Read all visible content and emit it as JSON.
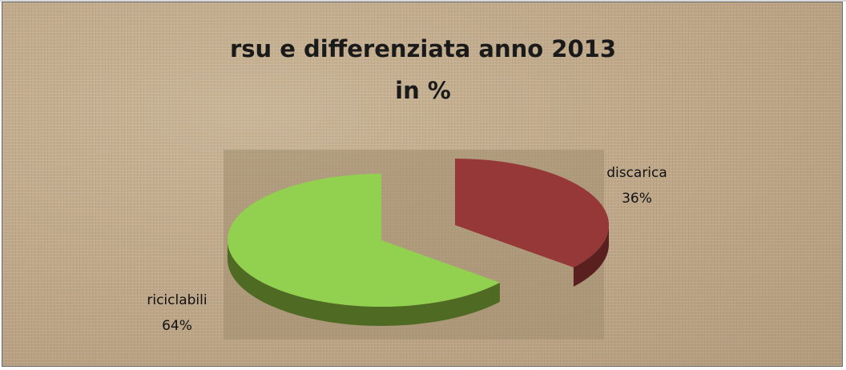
{
  "chart_data": {
    "type": "pie",
    "title": "rsu e differenziata anno 2013",
    "subtitle": "in %",
    "slices": [
      {
        "label": "discarica",
        "value": 36,
        "value_label": "36%",
        "color": "#963838",
        "side_color": "#5a1f1f"
      },
      {
        "label": "riciclabili",
        "value": 64,
        "value_label": "64%",
        "color": "#92d050",
        "side_color": "#4f6b23"
      }
    ],
    "style": "3d-exploded"
  }
}
